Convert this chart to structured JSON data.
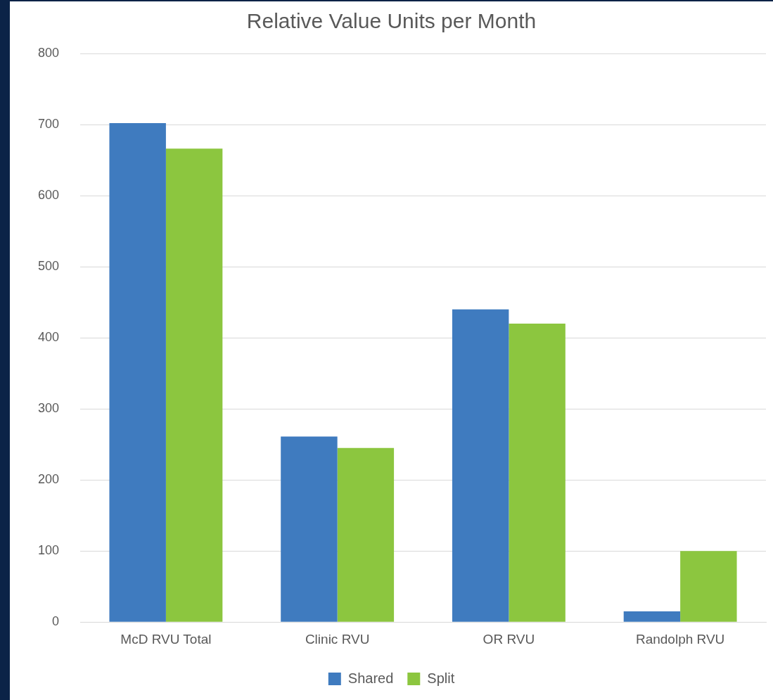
{
  "chart_data": {
    "type": "bar",
    "title": "Relative Value Units per Month",
    "categories": [
      "McD RVU Total",
      "Clinic RVU",
      "OR RVU",
      "Randolph RVU"
    ],
    "series": [
      {
        "name": "Shared",
        "color": "#3f7bbf",
        "values": [
          702,
          261,
          440,
          15
        ]
      },
      {
        "name": "Split",
        "color": "#8cc63f",
        "values": [
          666,
          245,
          420,
          100
        ]
      }
    ],
    "ylim": [
      0,
      800
    ],
    "yticks": [
      0,
      100,
      200,
      300,
      400,
      500,
      600,
      700,
      800
    ],
    "grid": "y",
    "legend": "bottom"
  }
}
